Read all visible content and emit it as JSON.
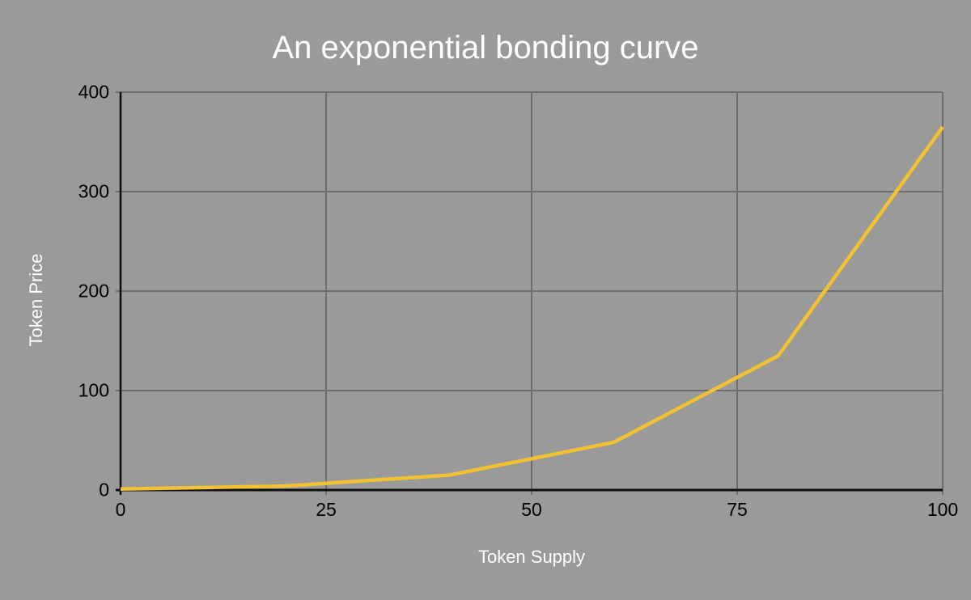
{
  "chart_data": {
    "type": "line",
    "title": "An exponential bonding curve",
    "xlabel": "Token Supply",
    "ylabel": "Token Price",
    "series": [
      {
        "name": "Token Price",
        "x": [
          0,
          20,
          40,
          60,
          80,
          100
        ],
        "values": [
          1,
          4,
          15,
          48,
          135,
          365
        ]
      }
    ],
    "xlim": [
      0,
      100
    ],
    "ylim": [
      0,
      400
    ],
    "x_ticks": [
      0,
      25,
      50,
      75,
      100
    ],
    "y_ticks": [
      0,
      100,
      200,
      300,
      400
    ],
    "grid": "on",
    "legend": "none",
    "colors": {
      "background": "#9a9a9a",
      "line": "#f1c232",
      "grid": "#6e6e6e",
      "axis": "#0d0d0d",
      "tick_labels": "#000000",
      "titles": "#ffffff"
    }
  }
}
